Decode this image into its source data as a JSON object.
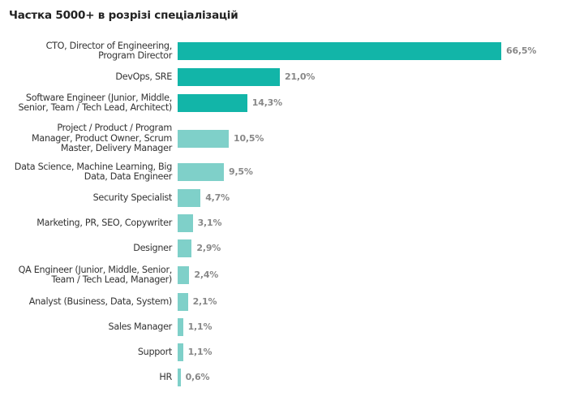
{
  "chart_data": {
    "type": "bar",
    "orientation": "horizontal",
    "title": "Частка 5000+ в розрізі спеціалізацій",
    "xlabel": "",
    "ylabel": "",
    "unit": "%",
    "xlim": [
      0,
      66.5
    ],
    "grid": false,
    "legend": "none",
    "categories": [
      "CTO, Director of Engineering,\nProgram Director",
      "DevOps, SRE",
      "Software Engineer (Junior, Middle,\nSenior, Team / Tech Lead, Architect)",
      "Project / Product / Program\nManager, Product Owner, Scrum\nMaster, Delivery Manager",
      "Data Science, Machine Learning, Big\nData, Data Engineer",
      "Security Specialist",
      "Marketing, PR, SEO, Copywriter",
      "Designer",
      "QA Engineer (Junior, Middle, Senior,\nTeam / Tech Lead, Manager)",
      "Analyst (Business, Data, System)",
      "Sales Manager",
      "Support",
      "HR"
    ],
    "values": [
      66.5,
      21.0,
      14.3,
      10.5,
      9.5,
      4.7,
      3.1,
      2.9,
      2.4,
      2.1,
      1.1,
      1.1,
      0.6
    ],
    "labels": [
      "66,5%",
      "21,0%",
      "14,3%",
      "10,5%",
      "9,5%",
      "4,7%",
      "3,1%",
      "2,9%",
      "2,4%",
      "2,1%",
      "1,1%",
      "1,1%",
      "0,6%"
    ],
    "colors": {
      "highlight": "#12b5a8",
      "normal": "#7fd0c9",
      "highlight_count": 3,
      "value_label": "#888888"
    }
  }
}
